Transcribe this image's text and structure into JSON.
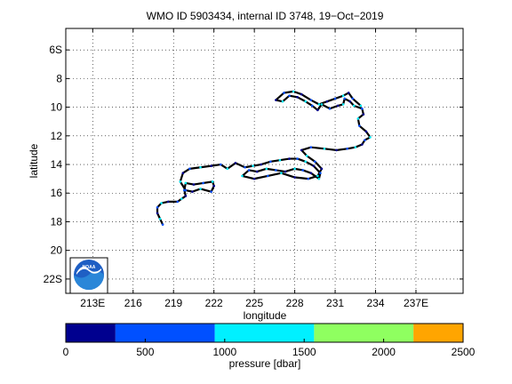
{
  "chart_data": [
    {
      "type": "scatter",
      "title": "WMO ID 5903434, internal ID 3748, 19−Oct−2019",
      "xlabel": "longitude",
      "ylabel": "latitude",
      "xlim": [
        211,
        240.5
      ],
      "ylim": [
        -23,
        -4.5
      ],
      "grid": true,
      "x_ticks": [
        213,
        216,
        219,
        222,
        225,
        228,
        231,
        234,
        237
      ],
      "x_tick_labels": [
        "213E",
        "216",
        "219",
        "222",
        "225",
        "228",
        "231",
        "234",
        "237E"
      ],
      "y_ticks": [
        -6,
        -8,
        -10,
        -12,
        -14,
        -16,
        -18,
        -20,
        -22
      ],
      "y_tick_labels": [
        "6S",
        "8",
        "10",
        "12",
        "14",
        "16",
        "18",
        "20",
        "22S"
      ],
      "series": [
        {
          "values": [
            [
              218.2,
              -18.2
            ],
            [
              218.0,
              -17.8
            ],
            [
              217.8,
              -17.4
            ],
            [
              217.8,
              -17.0
            ],
            [
              218.1,
              -16.7
            ],
            [
              218.6,
              -16.6
            ],
            [
              219.3,
              -16.6
            ],
            [
              219.6,
              -16.4
            ],
            [
              219.9,
              -16.2
            ],
            [
              219.8,
              -15.8
            ],
            [
              219.9,
              -15.3
            ],
            [
              220.5,
              -15.4
            ],
            [
              221.2,
              -15.3
            ],
            [
              221.9,
              -15.2
            ],
            [
              222.0,
              -15.5
            ],
            [
              221.8,
              -15.9
            ],
            [
              221.0,
              -15.7
            ],
            [
              220.4,
              -15.9
            ],
            [
              219.9,
              -15.8
            ],
            [
              219.5,
              -15.2
            ],
            [
              219.7,
              -14.6
            ],
            [
              220.2,
              -14.3
            ],
            [
              221.0,
              -14.2
            ],
            [
              221.8,
              -14.1
            ],
            [
              222.5,
              -14.0
            ],
            [
              223.0,
              -14.3
            ],
            [
              223.6,
              -13.9
            ],
            [
              224.3,
              -14.2
            ],
            [
              224.9,
              -14.1
            ],
            [
              225.5,
              -14.0
            ],
            [
              226.2,
              -13.8
            ],
            [
              226.9,
              -13.7
            ],
            [
              227.6,
              -13.6
            ],
            [
              228.2,
              -13.6
            ],
            [
              228.8,
              -13.8
            ],
            [
              229.4,
              -14.1
            ],
            [
              229.9,
              -14.6
            ],
            [
              229.8,
              -15.0
            ],
            [
              229.2,
              -14.6
            ],
            [
              228.6,
              -14.4
            ],
            [
              228.0,
              -14.3
            ],
            [
              227.3,
              -14.5
            ],
            [
              226.6,
              -14.4
            ],
            [
              225.9,
              -14.3
            ],
            [
              225.2,
              -14.5
            ],
            [
              224.6,
              -14.4
            ],
            [
              224.1,
              -14.8
            ],
            [
              225.0,
              -15.0
            ],
            [
              226.0,
              -14.8
            ],
            [
              227.0,
              -14.6
            ],
            [
              228.0,
              -14.9
            ],
            [
              229.0,
              -15.0
            ],
            [
              229.7,
              -14.8
            ],
            [
              230.0,
              -14.3
            ],
            [
              229.5,
              -13.8
            ],
            [
              228.9,
              -13.4
            ],
            [
              228.5,
              -13.0
            ],
            [
              229.2,
              -12.8
            ],
            [
              230.2,
              -12.9
            ],
            [
              231.1,
              -13.0
            ],
            [
              231.9,
              -12.9
            ],
            [
              232.5,
              -12.8
            ],
            [
              233.0,
              -12.6
            ],
            [
              233.2,
              -12.3
            ],
            [
              233.6,
              -12.1
            ],
            [
              233.3,
              -11.7
            ],
            [
              232.8,
              -11.3
            ],
            [
              232.7,
              -10.8
            ],
            [
              233.1,
              -10.5
            ],
            [
              233.0,
              -10.1
            ],
            [
              232.4,
              -9.9
            ],
            [
              232.1,
              -9.6
            ],
            [
              231.7,
              -9.4
            ],
            [
              231.6,
              -9.8
            ],
            [
              231.2,
              -9.9
            ],
            [
              230.6,
              -10.1
            ],
            [
              230.0,
              -9.8
            ],
            [
              229.7,
              -10.2
            ],
            [
              229.3,
              -9.9
            ],
            [
              228.8,
              -9.6
            ],
            [
              228.2,
              -9.3
            ],
            [
              227.6,
              -9.2
            ],
            [
              227.1,
              -9.6
            ],
            [
              226.6,
              -9.5
            ],
            [
              227.2,
              -9.0
            ],
            [
              227.9,
              -8.9
            ],
            [
              228.5,
              -9.1
            ],
            [
              229.2,
              -9.5
            ],
            [
              229.8,
              -9.8
            ],
            [
              230.4,
              -9.6
            ],
            [
              231.0,
              -9.4
            ],
            [
              231.6,
              -9.2
            ],
            [
              232.0,
              -9.0
            ],
            [
              232.3,
              -9.4
            ],
            [
              232.9,
              -9.9
            ]
          ]
        }
      ]
    },
    {
      "type": "colorbar",
      "xlabel": "pressure [dbar]",
      "xlim": [
        0,
        2500
      ],
      "ticks": [
        0,
        500,
        1000,
        1500,
        2000,
        2500
      ],
      "tick_labels": [
        "0",
        "500",
        "1000",
        "1500",
        "2000",
        "2500"
      ],
      "bins": [
        {
          "from": 0,
          "to": 312.5,
          "color": "#00008f"
        },
        {
          "from": 312.5,
          "to": 937.5,
          "color": "#0050ff"
        },
        {
          "from": 937.5,
          "to": 1562.5,
          "color": "#00f0ff"
        },
        {
          "from": 1562.5,
          "to": 2187.5,
          "color": "#8fff60"
        },
        {
          "from": 2187.5,
          "to": 2500,
          "color": "#ffa500"
        }
      ]
    }
  ],
  "logo": {
    "text": "NOAA"
  }
}
